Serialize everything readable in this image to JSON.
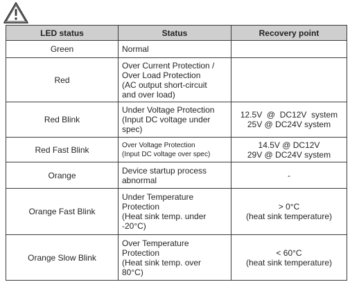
{
  "table": {
    "headers": [
      "LED status",
      "Status",
      "Recovery point"
    ],
    "rows": [
      {
        "led": "Green",
        "status": [
          "Normal"
        ],
        "recovery": []
      },
      {
        "led": "Red",
        "status": [
          "Over Current Protection /",
          "Over Load Protection",
          "(AC output short-circuit",
          "and over load)"
        ],
        "recovery": []
      },
      {
        "led": "Red Blink",
        "status": [
          "Under Voltage Protection",
          "(Input DC voltage under",
          "spec)"
        ],
        "recovery": [
          "12.5V  @  DC12V  system",
          "25V @ DC24V system"
        ]
      },
      {
        "led": "Red Fast Blink",
        "status": [
          "Over Voltage Protection",
          "(Input DC voltage over spec)"
        ],
        "recovery": [
          "14.5V @ DC12V",
          "29V @ DC24V system"
        ]
      },
      {
        "led": "Orange",
        "status": [
          "Device startup process",
          "abnormal"
        ],
        "recovery": [
          "-"
        ]
      },
      {
        "led": "Orange Fast Blink",
        "status": [
          "Under Temperature",
          "Protection",
          "(Heat sink temp. under",
          "-20°C)"
        ],
        "recovery": [
          "> 0°C",
          "(heat sink temperature)"
        ]
      },
      {
        "led": "Orange Slow Blink",
        "status": [
          "Over Temperature",
          "Protection",
          "(Heat sink temp. over",
          "80°C)"
        ],
        "recovery": [
          "< 60°C",
          "(heat sink temperature)"
        ]
      }
    ]
  }
}
